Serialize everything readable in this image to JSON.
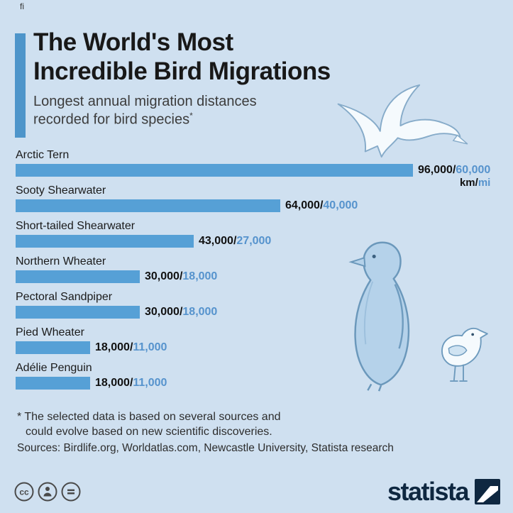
{
  "crop_artifact": "fi",
  "header": {
    "title_line1": "The World's Most",
    "title_line2": "Incredible Bird Migrations",
    "subtitle_line1": "Longest annual migration distances",
    "subtitle_line2": "recorded for bird species",
    "footnote_marker": "*"
  },
  "chart_data": {
    "type": "bar",
    "orientation": "horizontal",
    "title": "The World's Most Incredible Bird Migrations",
    "subtitle": "Longest annual migration distances recorded for bird species*",
    "categories": [
      "Arctic Tern",
      "Sooty Shearwater",
      "Short-tailed Shearwater",
      "Northern Wheater",
      "Pectoral Sandpiper",
      "Pied Wheater",
      "Adélie Penguin"
    ],
    "series": [
      {
        "name": "km",
        "values": [
          96000,
          64000,
          43000,
          30000,
          30000,
          18000,
          18000
        ]
      },
      {
        "name": "mi",
        "values": [
          60000,
          40000,
          27000,
          18000,
          18000,
          11000,
          11000
        ]
      }
    ],
    "value_labels_km": [
      "96,000",
      "64,000",
      "43,000",
      "30,000",
      "30,000",
      "18,000",
      "18,000"
    ],
    "value_labels_mi": [
      "60,000",
      "40,000",
      "27,000",
      "18,000",
      "18,000",
      "11,000",
      "11,000"
    ],
    "separator": "/",
    "unit_label": {
      "km": "km",
      "mi": "mi"
    },
    "max_value_km": 96000,
    "xlim": [
      0,
      96000
    ],
    "grid": false,
    "legend": false,
    "bar_color": "#56a0d6",
    "mi_text_color": "#5693cd"
  },
  "footnote": {
    "line1": "* The selected data is based on several sources and",
    "line2": "could evolve based on new scientific discoveries."
  },
  "sources": "Sources: Birdlife.org, Worldatlas.com, Newcastle University, Statista research",
  "footer": {
    "brand": "statista",
    "license_icons": [
      "cc-icon",
      "attribution-icon",
      "no-derivatives-icon"
    ]
  },
  "colors": {
    "background": "#cfe0f0",
    "accent_bar": "#4e95ca",
    "bar": "#56a0d6",
    "mi_text": "#5693cd",
    "brand": "#0e2740"
  }
}
